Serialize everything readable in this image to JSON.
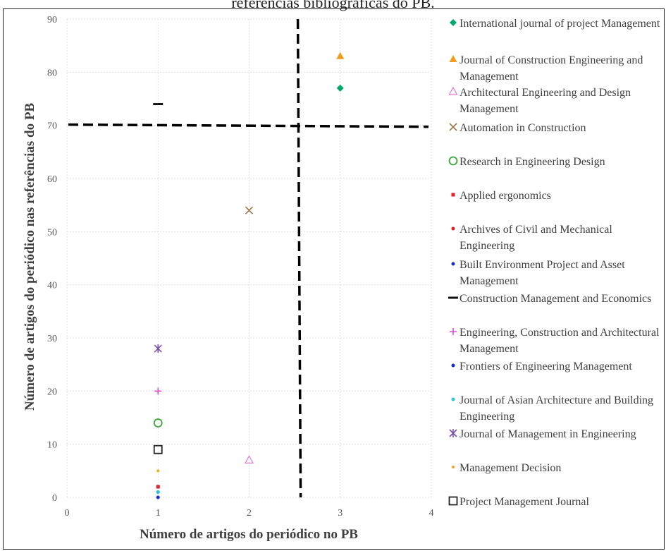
{
  "title_partial": "referências bibliográficas do PB.",
  "chart_data": {
    "type": "scatter",
    "xlabel": "Número de artigos do periódico no PB",
    "ylabel": "Número de artigos do periódico nas referências do PB",
    "xlim": [
      0,
      4
    ],
    "ylim": [
      0,
      90
    ],
    "xticks": [
      "0",
      "1",
      "2",
      "3",
      "4"
    ],
    "yticks": [
      "0",
      "10",
      "20",
      "30",
      "40",
      "50",
      "60",
      "70",
      "80",
      "90"
    ],
    "grid": true,
    "legend_position": "right",
    "reference_lines": [
      {
        "orientation": "horizontal",
        "y": 70,
        "style": "dashed",
        "color": "#000000"
      },
      {
        "orientation": "vertical",
        "x": 2.55,
        "style": "dashed",
        "color": "#000000"
      }
    ],
    "series": [
      {
        "name": "International journal of project Management",
        "x": [
          3
        ],
        "y": [
          77
        ],
        "marker": "diamond",
        "color": "#00a86b"
      },
      {
        "name": "Journal of Construction Engineering and Management",
        "x": [
          3
        ],
        "y": [
          83
        ],
        "marker": "triangle",
        "color": "#f29c1f"
      },
      {
        "name": "Architectural Engineering and Design Management",
        "x": [
          2
        ],
        "y": [
          7
        ],
        "marker": "triangle-open",
        "color": "#e07ad8"
      },
      {
        "name": "Automation in Construction",
        "x": [
          2
        ],
        "y": [
          54
        ],
        "marker": "x",
        "color": "#a0784a"
      },
      {
        "name": "Research in Engineering Design",
        "x": [
          1
        ],
        "y": [
          14
        ],
        "marker": "circle-open",
        "color": "#3aa63a"
      },
      {
        "name": "Applied ergonomics",
        "x": [
          1
        ],
        "y": [
          2
        ],
        "marker": "square-small",
        "color": "#e0202a"
      },
      {
        "name": "Archives of Civil and Mechanical Engineering",
        "x": [
          1
        ],
        "y": [
          2
        ],
        "marker": "dot",
        "color": "#e0202a"
      },
      {
        "name": "Built Environment Project and Asset Management",
        "x": [
          1
        ],
        "y": [
          0
        ],
        "marker": "dot",
        "color": "#1530d0"
      },
      {
        "name": "Construction Management and Economics",
        "x": [
          1
        ],
        "y": [
          74
        ],
        "marker": "dash",
        "color": "#111111"
      },
      {
        "name": "Engineering, Construction and Architectural Management",
        "x": [
          1
        ],
        "y": [
          20
        ],
        "marker": "plus",
        "color": "#d650d6"
      },
      {
        "name": "Frontiers of Engineering Management",
        "x": [
          1
        ],
        "y": [
          1
        ],
        "marker": "dot",
        "color": "#1530d0"
      },
      {
        "name": "Journal of Asian Architecture and Building Engineering",
        "x": [
          1
        ],
        "y": [
          1
        ],
        "marker": "dot",
        "color": "#2ec8d8"
      },
      {
        "name": "Journal of Management in Engineering",
        "x": [
          1
        ],
        "y": [
          28
        ],
        "marker": "star",
        "color": "#7b4fb0"
      },
      {
        "name": "Management Decision",
        "x": [
          1
        ],
        "y": [
          5
        ],
        "marker": "dot-small",
        "color": "#f2a81f"
      },
      {
        "name": "Project Management Journal",
        "x": [
          1
        ],
        "y": [
          9
        ],
        "marker": "square-open",
        "color": "#222222"
      }
    ]
  }
}
